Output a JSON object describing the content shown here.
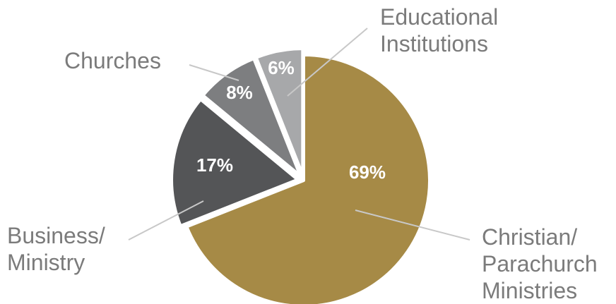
{
  "chart_data": {
    "type": "pie",
    "title": "",
    "slices": [
      {
        "label": [
          "Christian/",
          "Parachurch",
          "Ministries"
        ],
        "value": 69,
        "value_label": "69%",
        "color": "#a68a46",
        "exploded": false
      },
      {
        "label": [
          "Business/",
          "Ministry"
        ],
        "value": 17,
        "value_label": "17%",
        "color": "#545557",
        "exploded": true
      },
      {
        "label": [
          "Churches"
        ],
        "value": 8,
        "value_label": "8%",
        "color": "#7d7e80",
        "exploded": true
      },
      {
        "label": [
          "Educational",
          "Institutions"
        ],
        "value": 6,
        "value_label": "6%",
        "color": "#a7a8aa",
        "exploded": true
      }
    ],
    "start_angle": "12 o'clock, clockwise",
    "legend": "none (direct leader-line labels)",
    "leader_line_color": "#c8c8c8",
    "label_color": "#7b7b7b"
  }
}
